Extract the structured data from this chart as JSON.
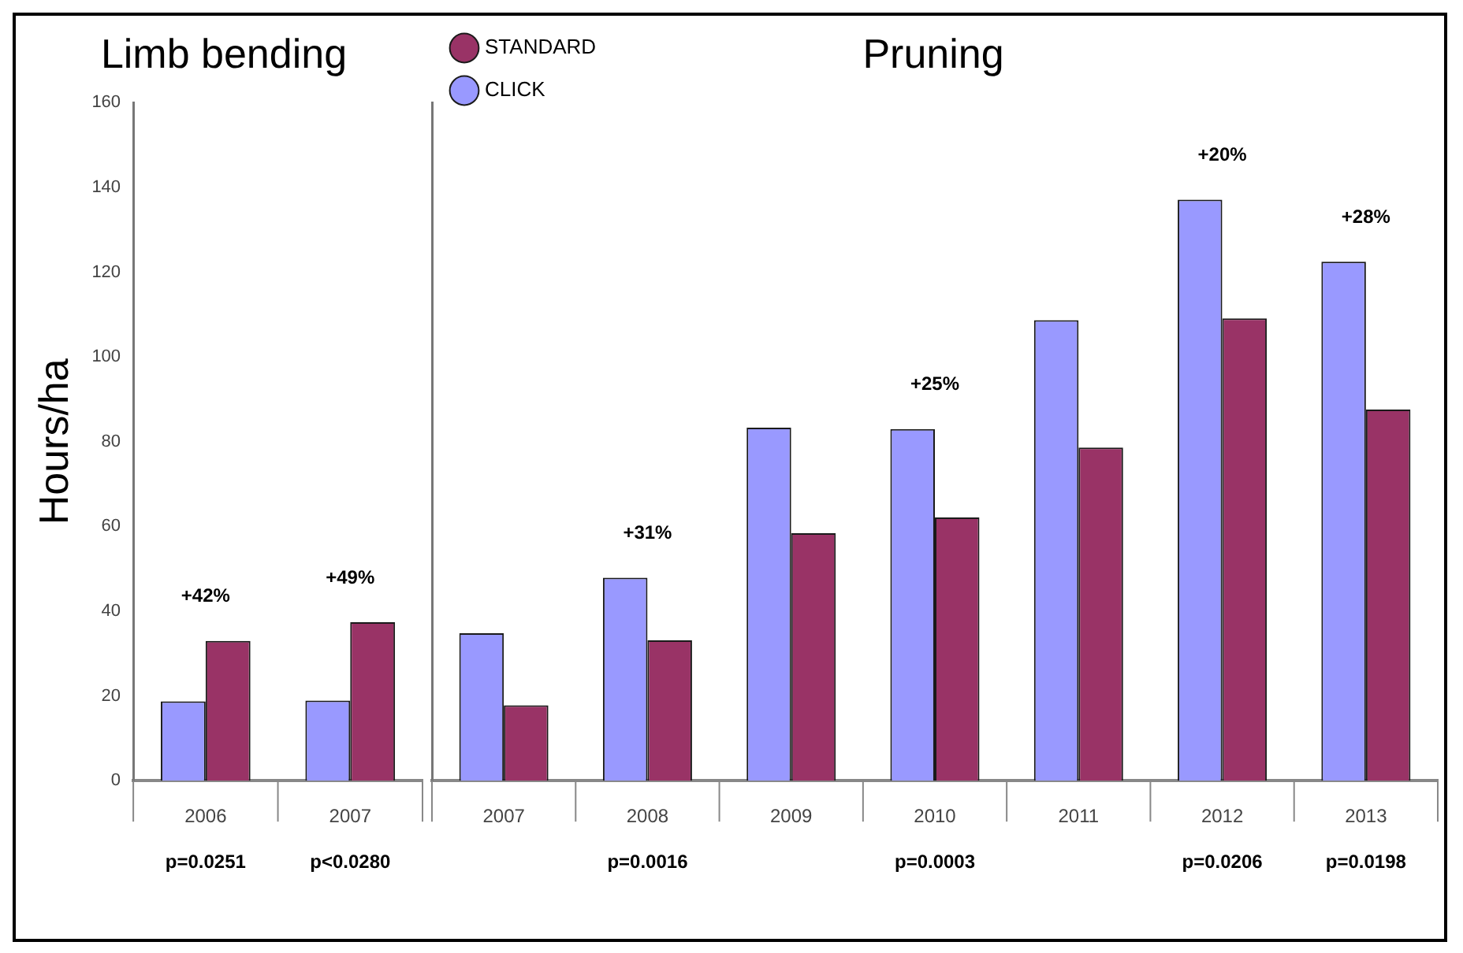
{
  "chart_data": [
    {
      "type": "bar",
      "title": "Limb bending",
      "ylabel": "Hours/ha",
      "categories": [
        "2006",
        "2007"
      ],
      "series": [
        {
          "color": "#9999ff",
          "values": [
            18.7,
            18.9
          ]
        },
        {
          "color": "#993366",
          "values": [
            33.0,
            37.4
          ]
        }
      ],
      "ylim": [
        0,
        160
      ],
      "yticks": [
        0,
        20,
        40,
        60,
        80,
        100,
        120,
        140,
        160
      ],
      "grid": false,
      "legend": false,
      "annotations": [
        "+42%",
        "+49%",
        "p=0.0251",
        "p<0.0280"
      ]
    },
    {
      "type": "bar",
      "title": "Pruning",
      "categories": [
        "2007",
        "2008",
        "2009",
        "2010",
        "2011",
        "2012",
        "2013"
      ],
      "series": [
        {
          "name": "CLICK",
          "color": "#9999ff",
          "values": [
            34.8,
            47.9,
            83.3,
            83.0,
            108.7,
            137.1,
            122.5
          ]
        },
        {
          "name": "STANDARD",
          "color": "#993366",
          "values": [
            17.8,
            33.1,
            58.4,
            62.1,
            78.6,
            109.1,
            87.6
          ]
        }
      ],
      "ylim": [
        0,
        160
      ],
      "yticks": [
        0,
        20,
        40,
        60,
        80,
        100,
        120,
        140,
        160
      ],
      "grid": false,
      "legend": "top left",
      "tick_labels": "x",
      "annotations": [
        "+31%",
        "+25%",
        "+20%",
        "+28%",
        "p=0.0016",
        "p=0.0003",
        "p=0.0206",
        "p=0.0198"
      ]
    }
  ]
}
